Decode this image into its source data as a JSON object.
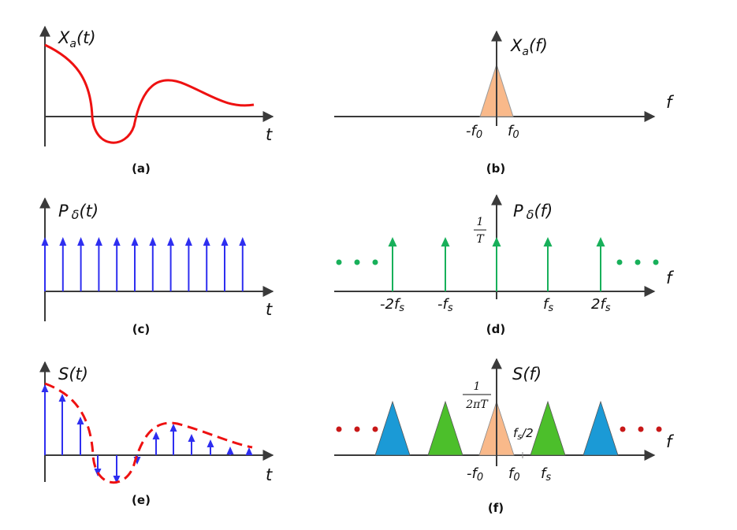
{
  "panels": {
    "a": {
      "caption": "(a)",
      "y_label": "X",
      "y_label_sub": "a",
      "y_label_arg": "(t)",
      "x_label": "t"
    },
    "b": {
      "caption": "(b)",
      "y_label": "X",
      "y_label_sub": "a",
      "y_label_arg": "(f)",
      "x_label": "f",
      "tick_neg": "-f",
      "tick_neg_sub": "0",
      "tick_pos": "f",
      "tick_pos_sub": "0"
    },
    "c": {
      "caption": "(c)",
      "y_label": "P",
      "y_label_sub": "δ",
      "y_label_arg": "(t)",
      "x_label": "t"
    },
    "d": {
      "caption": "(d)",
      "y_label": "P",
      "y_label_sub": "δ",
      "y_label_arg": "(f)",
      "x_label": "f",
      "height_num": "1",
      "height_den": "T",
      "ticks": [
        {
          "a": "-2f",
          "s": "s"
        },
        {
          "a": "-f",
          "s": "s"
        },
        {
          "a": "f",
          "s": "s"
        },
        {
          "a": "2f",
          "s": "s"
        }
      ]
    },
    "e": {
      "caption": "(e)",
      "y_label": "S(t)",
      "x_label": "t"
    },
    "f": {
      "caption": "(f)",
      "y_label": "S(f)",
      "x_label": "f",
      "height_num": "1",
      "height_den": "2πT",
      "tick_neg": "-f",
      "tick_neg_sub": "0",
      "tick_pos": "f",
      "tick_pos_sub": "0",
      "tick_fs": "f",
      "tick_fs_sub": "s",
      "half": "f",
      "half_sub": "s",
      "half_rest": "/2"
    }
  },
  "colors": {
    "axis": "#3a3a3a",
    "signal": "#ee1111",
    "impulse_time": "#2e2ef0",
    "impulse_freq": "#18b05a",
    "tri_center": "#f9b98a",
    "tri_green": "#4cbf2b",
    "tri_blue": "#1b9ad6",
    "dots_green": "#18b05a",
    "dots_red": "#c81818"
  }
}
